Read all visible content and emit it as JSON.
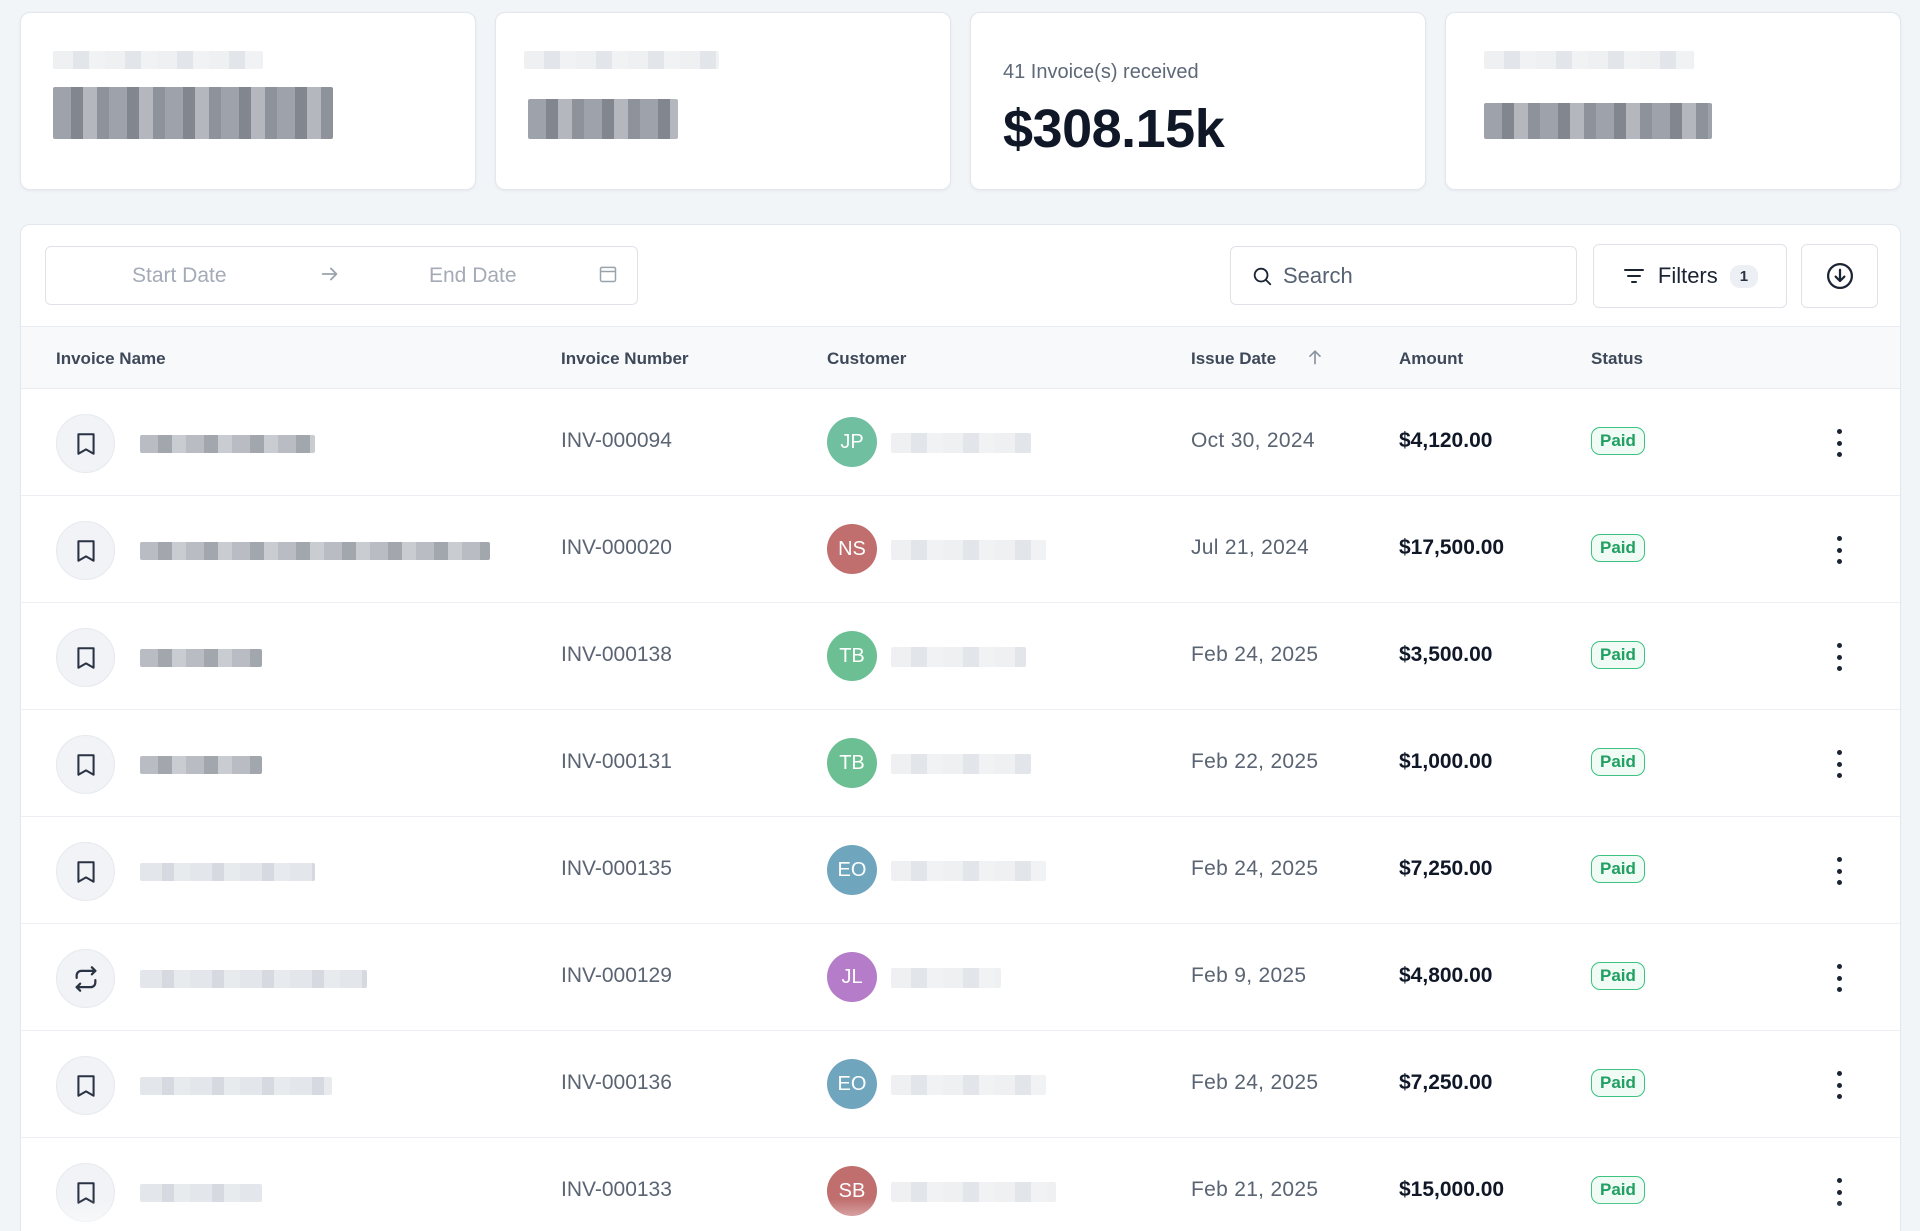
{
  "summary_cards": [
    {
      "label": "",
      "value": ""
    },
    {
      "label": "",
      "value": ""
    },
    {
      "label": "41 Invoice(s) received",
      "value": "$308.15k"
    },
    {
      "label": "",
      "value": ""
    }
  ],
  "toolbar": {
    "start_date_placeholder": "Start Date",
    "end_date_placeholder": "End Date",
    "search_placeholder": "Search",
    "filters_label": "Filters",
    "filters_count": "1"
  },
  "table": {
    "columns": {
      "invoice_name": "Invoice Name",
      "invoice_number": "Invoice Number",
      "customer": "Customer",
      "issue_date": "Issue Date",
      "amount": "Amount",
      "status": "Status"
    },
    "sort_column": "Issue Date",
    "rows": [
      {
        "icon": "receipt-icon",
        "number": "INV-000094",
        "initials": "JP",
        "avatar_color": "#6fbfa0",
        "issue_date": "Oct 30, 2024",
        "amount": "$4,120.00",
        "status": "Paid"
      },
      {
        "icon": "receipt-icon",
        "number": "INV-000020",
        "initials": "NS",
        "avatar_color": "#c06e6e",
        "issue_date": "Jul 21, 2024",
        "amount": "$17,500.00",
        "status": "Paid"
      },
      {
        "icon": "receipt-icon",
        "number": "INV-000138",
        "initials": "TB",
        "avatar_color": "#6bbf93",
        "issue_date": "Feb 24, 2025",
        "amount": "$3,500.00",
        "status": "Paid"
      },
      {
        "icon": "receipt-icon",
        "number": "INV-000131",
        "initials": "TB",
        "avatar_color": "#6bbf93",
        "issue_date": "Feb 22, 2025",
        "amount": "$1,000.00",
        "status": "Paid"
      },
      {
        "icon": "receipt-icon",
        "number": "INV-000135",
        "initials": "EO",
        "avatar_color": "#6fa6be",
        "issue_date": "Feb 24, 2025",
        "amount": "$7,250.00",
        "status": "Paid"
      },
      {
        "icon": "recurring-icon",
        "number": "INV-000129",
        "initials": "JL",
        "avatar_color": "#b57cc9",
        "issue_date": "Feb 9, 2025",
        "amount": "$4,800.00",
        "status": "Paid"
      },
      {
        "icon": "receipt-icon",
        "number": "INV-000136",
        "initials": "EO",
        "avatar_color": "#6fa6be",
        "issue_date": "Feb 24, 2025",
        "amount": "$7,250.00",
        "status": "Paid"
      },
      {
        "icon": "receipt-icon",
        "number": "INV-000133",
        "initials": "SB",
        "avatar_color": "#c06e6e",
        "issue_date": "Feb 21, 2025",
        "amount": "$15,000.00",
        "status": "Paid"
      }
    ]
  }
}
